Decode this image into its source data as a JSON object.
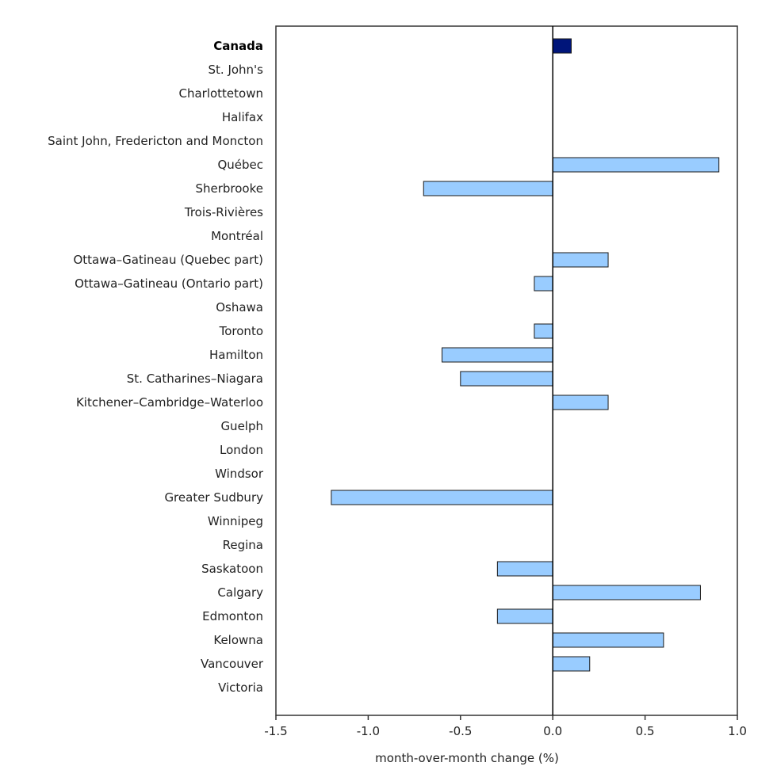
{
  "chart_data": {
    "type": "bar",
    "orientation": "horizontal",
    "title": "",
    "xlabel": "month-over-month change (%)",
    "ylabel": "",
    "xlim": [
      -1.5,
      1.0
    ],
    "x_ticks": [
      "-1.5",
      "-1.0",
      "-0.5",
      "0.0",
      "0.5",
      "1.0"
    ],
    "x_tick_values": [
      -1.5,
      -1.0,
      -0.5,
      0.0,
      0.5,
      1.0
    ],
    "grid": false,
    "colors": {
      "highlight": "#00157a",
      "default": "#99ccff",
      "stroke": "#1a1a1a"
    },
    "categories": [
      "Canada",
      "St. John's",
      "Charlottetown",
      "Halifax",
      "Saint John, Fredericton and Moncton",
      "Québec",
      "Sherbrooke",
      "Trois-Rivières",
      "Montréal",
      "Ottawa–Gatineau (Quebec part)",
      "Ottawa–Gatineau (Ontario part)",
      "Oshawa",
      "Toronto",
      "Hamilton",
      "St. Catharines–Niagara",
      "Kitchener–Cambridge–Waterloo",
      "Guelph",
      "London",
      "Windsor",
      "Greater Sudbury",
      "Winnipeg",
      "Regina",
      "Saskatoon",
      "Calgary",
      "Edmonton",
      "Kelowna",
      "Vancouver",
      "Victoria"
    ],
    "values": [
      0.1,
      0.0,
      0.0,
      0.0,
      0.0,
      0.9,
      -0.7,
      0.0,
      0.0,
      0.3,
      -0.1,
      0.0,
      -0.1,
      -0.6,
      -0.5,
      0.3,
      0.0,
      0.0,
      0.0,
      -1.2,
      0.0,
      0.0,
      -0.3,
      0.8,
      -0.3,
      0.6,
      0.2,
      0.0
    ],
    "highlight_index": 0
  }
}
